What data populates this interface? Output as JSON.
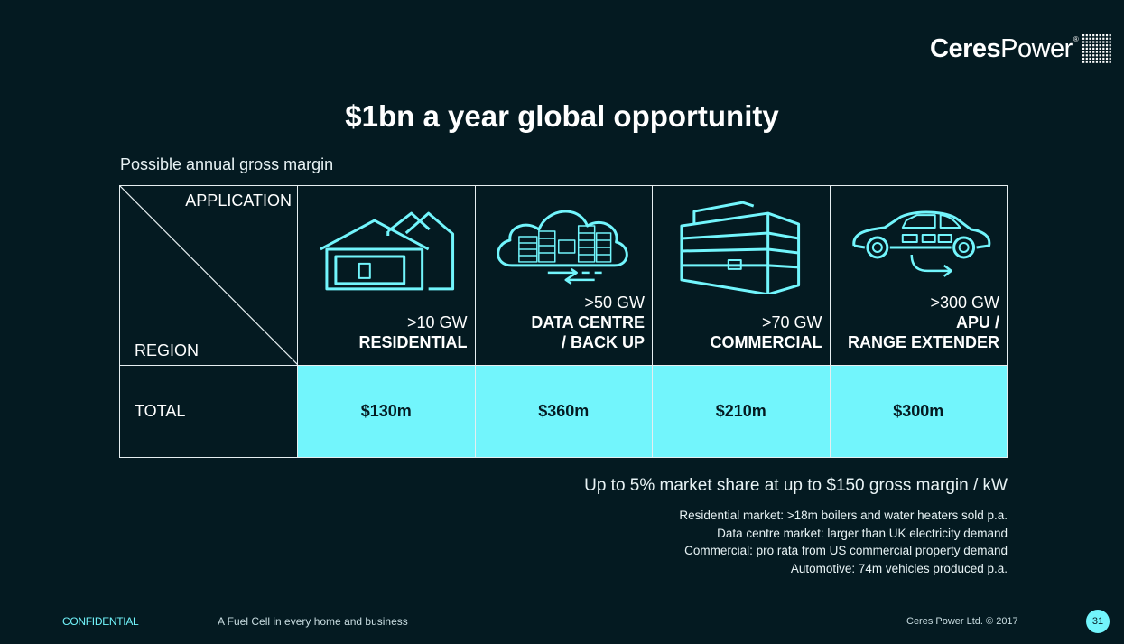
{
  "logo": {
    "part1": "Ceres",
    "part2": "Power",
    "reg": "®"
  },
  "title": "$1bn a year global opportunity",
  "subtitle": "Possible annual gross margin",
  "table": {
    "corner_top": "APPLICATION",
    "corner_bottom": "REGION",
    "applications": [
      {
        "gw": ">10 GW",
        "name1": "RESIDENTIAL",
        "name2": "",
        "icon": "house-icon"
      },
      {
        "gw": ">50 GW",
        "name1": "DATA CENTRE",
        "name2": "/ BACK UP",
        "icon": "cloud-server-icon"
      },
      {
        "gw": ">70 GW",
        "name1": "COMMERCIAL",
        "name2": "",
        "icon": "building-icon"
      },
      {
        "gw": ">300 GW",
        "name1": "APU /",
        "name2": "RANGE EXTENDER",
        "icon": "car-icon"
      }
    ],
    "row_label": "TOTAL",
    "values": [
      "$130m",
      "$360m",
      "$210m",
      "$300m"
    ]
  },
  "share": "Up to 5% market share at up to $150 gross margin / kW",
  "notes": [
    "Residential market: >18m boilers and water heaters sold p.a.",
    "Data centre market: larger than UK electricity demand",
    "Commercial: pro rata from US commercial property demand",
    "Automotive: 74m vehicles produced p.a."
  ],
  "footer": {
    "confidential": "CONFIDENTIAL",
    "tagline": "A Fuel Cell in every home and business",
    "copyright": "Ceres Power Ltd. © 2017",
    "page": "31"
  },
  "colors": {
    "background": "#041a21",
    "accent": "#72f5fc",
    "line": "#e6eef0"
  }
}
